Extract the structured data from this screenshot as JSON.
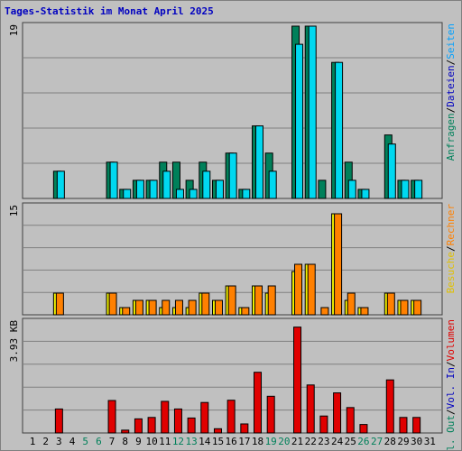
{
  "title": "Tages-Statistik im Monat April 2025",
  "colors": {
    "background": "#c0c0c0",
    "title": "#0000c0",
    "anfragen": "#00805a",
    "dateien": "#00d8f0",
    "seiten": "#00a0ff",
    "besuche": "#f0f000",
    "rechner": "#ff8000",
    "volumen": "#e00000",
    "weekend": "#00805a",
    "grid": "#808080"
  },
  "right_labels": {
    "top": [
      {
        "text": "Anfragen",
        "color": "#00805a"
      },
      {
        "text": "/",
        "color": "#000000"
      },
      {
        "text": "Dateien",
        "color": "#0000c0"
      },
      {
        "text": "/",
        "color": "#000000"
      },
      {
        "text": "Seiten",
        "color": "#00a0ff"
      }
    ],
    "mid": [
      {
        "text": "Besuche",
        "color": "#e0c000"
      },
      {
        "text": "/",
        "color": "#000000"
      },
      {
        "text": "Rechner",
        "color": "#ff8000"
      }
    ],
    "bottom": [
      {
        "text": "Vol. Out",
        "color": "#00805a"
      },
      {
        "text": "/",
        "color": "#000000"
      },
      {
        "text": "Vol. In",
        "color": "#0000c0"
      },
      {
        "text": "/",
        "color": "#000000"
      },
      {
        "text": "Volumen",
        "color": "#e00000"
      }
    ]
  },
  "chart_data": [
    {
      "type": "bar",
      "panel": "top",
      "ymax": 19,
      "ymax_label": "19",
      "categories": [
        "1",
        "2",
        "3",
        "4",
        "5",
        "6",
        "7",
        "8",
        "9",
        "10",
        "11",
        "12",
        "13",
        "14",
        "15",
        "16",
        "17",
        "18",
        "19",
        "20",
        "21",
        "22",
        "23",
        "24",
        "25",
        "26",
        "27",
        "28",
        "29",
        "30",
        "31"
      ],
      "weekend_days": [
        5,
        6,
        12,
        13,
        19,
        20,
        26,
        27
      ],
      "series": [
        {
          "name": "Anfragen",
          "values": [
            0,
            0,
            3,
            0,
            0,
            0,
            4,
            1,
            2,
            2,
            4,
            4,
            2,
            4,
            2,
            5,
            1,
            8,
            5,
            0,
            19,
            19,
            2,
            15,
            4,
            1,
            0,
            7,
            2,
            2,
            0
          ]
        },
        {
          "name": "Dateien",
          "values": [
            0,
            0,
            3,
            0,
            0,
            0,
            4,
            1,
            2,
            2,
            3,
            1,
            1,
            3,
            2,
            5,
            1,
            8,
            3,
            0,
            17,
            19,
            0,
            15,
            2,
            1,
            0,
            6,
            2,
            2,
            0
          ]
        }
      ]
    },
    {
      "type": "bar",
      "panel": "mid",
      "ymax": 15,
      "ymax_label": "15",
      "series": [
        {
          "name": "Besuche",
          "values": [
            0,
            0,
            3,
            0,
            0,
            0,
            3,
            1,
            2,
            2,
            1,
            1,
            1,
            3,
            2,
            4,
            1,
            4,
            3,
            0,
            6,
            7,
            0,
            14,
            2,
            1,
            0,
            3,
            2,
            2,
            0
          ]
        },
        {
          "name": "Rechner",
          "values": [
            0,
            0,
            3,
            0,
            0,
            0,
            3,
            1,
            2,
            2,
            2,
            2,
            2,
            3,
            2,
            4,
            1,
            4,
            4,
            0,
            7,
            7,
            1,
            14,
            3,
            1,
            0,
            3,
            2,
            2,
            0
          ]
        }
      ]
    },
    {
      "type": "bar",
      "panel": "bottom",
      "ymax": 3.93,
      "ymax_label": "3.93 KB",
      "series": [
        {
          "name": "Volumen",
          "values": [
            0,
            0,
            0.85,
            0,
            0,
            0,
            1.15,
            0.1,
            0.5,
            0.55,
            1.12,
            0.85,
            0.53,
            1.08,
            0.15,
            1.16,
            0.32,
            2.15,
            1.3,
            0,
            3.75,
            1.7,
            0.6,
            1.42,
            0.9,
            0.3,
            0,
            1.88,
            0.55,
            0.55,
            0
          ]
        }
      ]
    }
  ]
}
